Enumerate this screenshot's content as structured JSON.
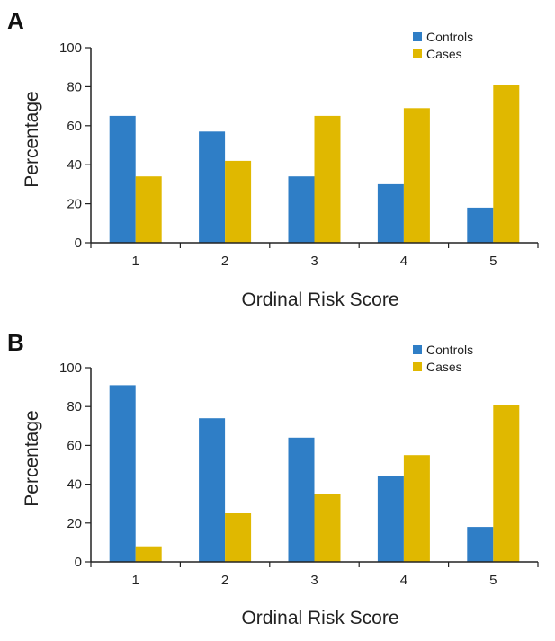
{
  "colors": {
    "controls": "#2f7ec6",
    "cases": "#e0b800",
    "axis": "#222222"
  },
  "chart_data": [
    {
      "type": "bar",
      "panel": "A",
      "categories": [
        "1",
        "2",
        "3",
        "4",
        "5"
      ],
      "series": [
        {
          "name": "Controls",
          "values": [
            65,
            57,
            34,
            30,
            18
          ]
        },
        {
          "name": "Cases",
          "values": [
            34,
            42,
            65,
            69,
            81
          ]
        }
      ],
      "xlabel": "Ordinal Risk Score",
      "ylabel": "Percentage",
      "ylim": [
        0,
        100
      ],
      "yticks": [
        "0",
        "20",
        "40",
        "60",
        "80",
        "100"
      ],
      "legend_position": "top-right",
      "grid": false
    },
    {
      "type": "bar",
      "panel": "B",
      "categories": [
        "1",
        "2",
        "3",
        "4",
        "5"
      ],
      "series": [
        {
          "name": "Controls",
          "values": [
            91,
            74,
            64,
            44,
            18
          ]
        },
        {
          "name": "Cases",
          "values": [
            8,
            25,
            35,
            55,
            81
          ]
        }
      ],
      "xlabel": "Ordinal Risk Score",
      "ylabel": "Percentage",
      "ylim": [
        0,
        100
      ],
      "yticks": [
        "0",
        "20",
        "40",
        "60",
        "80",
        "100"
      ],
      "legend_position": "top-right",
      "grid": false
    }
  ]
}
